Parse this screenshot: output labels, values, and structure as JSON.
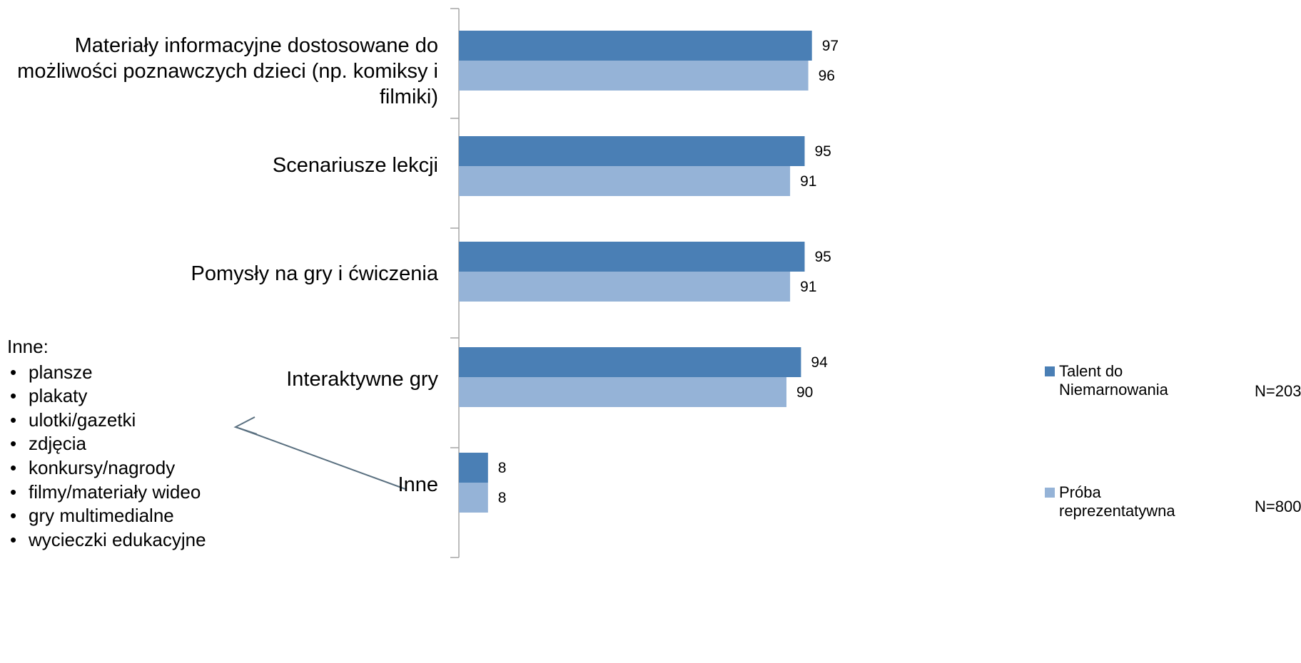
{
  "chart_data": {
    "type": "bar",
    "orientation": "horizontal",
    "categories": [
      "Materiały informacyjne dostosowane do możliwości poznawczych dzieci (np. komiksy i filmiki)",
      "Scenariusze lekcji",
      "Pomysły na gry i ćwiczenia",
      "Interaktywne gry",
      "Inne"
    ],
    "series": [
      {
        "name": "Talent do Niemarnowania",
        "n_label": "N=203",
        "color": "#4a7fb5",
        "values": [
          97,
          95,
          95,
          94,
          8
        ]
      },
      {
        "name": "Próba reprezentatywna",
        "n_label": "N=800",
        "color": "#95b3d7",
        "values": [
          96,
          91,
          91,
          90,
          8
        ]
      }
    ],
    "xlim": [
      0,
      100
    ],
    "grid": false,
    "legend_position": "right",
    "data_labels": true
  },
  "note": {
    "title": "Inne:",
    "items": [
      "plansze",
      "plakaty",
      "ulotki/gazetki",
      "zdjęcia",
      "konkursy/nagrody",
      "filmy/materiały wideo",
      "gry multimedialne",
      "wycieczki edukacyjne"
    ],
    "bullet": "•"
  }
}
